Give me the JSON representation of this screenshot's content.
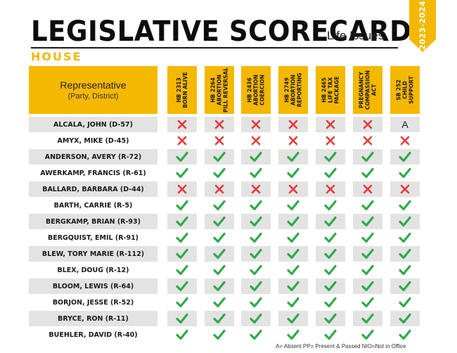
{
  "header": {
    "title": "LEGISLATIVE SCORECARD",
    "subtitle": "Life Issues",
    "chamber": "HOUSE",
    "years": "2023-2024"
  },
  "table": {
    "rep_header": "Representative",
    "rep_subheader": "(Party, District)",
    "bills": [
      {
        "lines": [
          "HB 2313",
          "BORN ALIVE"
        ]
      },
      {
        "lines": [
          "HB 2264",
          "ABORTION",
          "PILL REVERSAL"
        ]
      },
      {
        "lines": [
          "HB 2436",
          "ABORTION",
          "COERCION"
        ]
      },
      {
        "lines": [
          "HB 2749",
          "ABORTION",
          "REPORTING"
        ]
      },
      {
        "lines": [
          "HB 2465",
          "LIFE TAX",
          "PACKAGE"
        ]
      },
      {
        "lines": [
          "PREGNANCY",
          "COMPASSION",
          "ACT"
        ]
      },
      {
        "lines": [
          "SB 252",
          "CHILD",
          "SUPPORT"
        ]
      }
    ],
    "rows": [
      {
        "name": "ALCALA, JOHN (D-57)",
        "votes": [
          "X",
          "X",
          "X",
          "X",
          "X",
          "X",
          "A"
        ]
      },
      {
        "name": "AMYX, MIKE (D-45)",
        "votes": [
          "X",
          "X",
          "X",
          "X",
          "X",
          "X",
          "X"
        ]
      },
      {
        "name": "ANDERSON, AVERY (R-72)",
        "votes": [
          "Y",
          "Y",
          "Y",
          "Y",
          "Y",
          "Y",
          "Y"
        ]
      },
      {
        "name": "AWERKAMP, FRANCIS (R-61)",
        "votes": [
          "Y",
          "Y",
          "Y",
          "Y",
          "Y",
          "Y",
          "Y"
        ]
      },
      {
        "name": "BALLARD, BARBARA (D-44)",
        "votes": [
          "X",
          "X",
          "X",
          "X",
          "X",
          "X",
          "X"
        ]
      },
      {
        "name": "BARTH, CARRIE (R-5)",
        "votes": [
          "Y",
          "Y",
          "Y",
          "Y",
          "Y",
          "Y",
          "Y"
        ]
      },
      {
        "name": "BERGKAMP, BRIAN (R-93)",
        "votes": [
          "Y",
          "Y",
          "Y",
          "Y",
          "Y",
          "Y",
          "Y"
        ]
      },
      {
        "name": "BERGQUIST, EMIL (R-91)",
        "votes": [
          "Y",
          "Y",
          "Y",
          "Y",
          "Y",
          "Y",
          "Y"
        ]
      },
      {
        "name": "BLEW, TORY MARIE (R-112)",
        "votes": [
          "Y",
          "Y",
          "Y",
          "Y",
          "Y",
          "Y",
          "Y"
        ]
      },
      {
        "name": "BLEX, DOUG (R-12)",
        "votes": [
          "Y",
          "Y",
          "Y",
          "Y",
          "Y",
          "Y",
          "Y"
        ]
      },
      {
        "name": "BLOOM, LEWIS (R-64)",
        "votes": [
          "Y",
          "Y",
          "Y",
          "Y",
          "Y",
          "Y",
          "Y"
        ]
      },
      {
        "name": "BORJON, JESSE (R-52)",
        "votes": [
          "Y",
          "Y",
          "Y",
          "Y",
          "Y",
          "Y",
          "Y"
        ]
      },
      {
        "name": "BRYCE, RON (R-11)",
        "votes": [
          "Y",
          "Y",
          "Y",
          "Y",
          "Y",
          "Y",
          "Y"
        ]
      },
      {
        "name": "BUEHLER, DAVID (R-40)",
        "votes": [
          "Y",
          "Y",
          "Y",
          "Y",
          "Y",
          "Y",
          "Y"
        ]
      }
    ]
  },
  "legend": "A= Absent PP= Present & Passed NIO=Not in Office",
  "colors": {
    "accent": "#f5b800",
    "yes": "#2eaa4a",
    "no": "#e5393b",
    "shade": "#e3e3e3"
  }
}
